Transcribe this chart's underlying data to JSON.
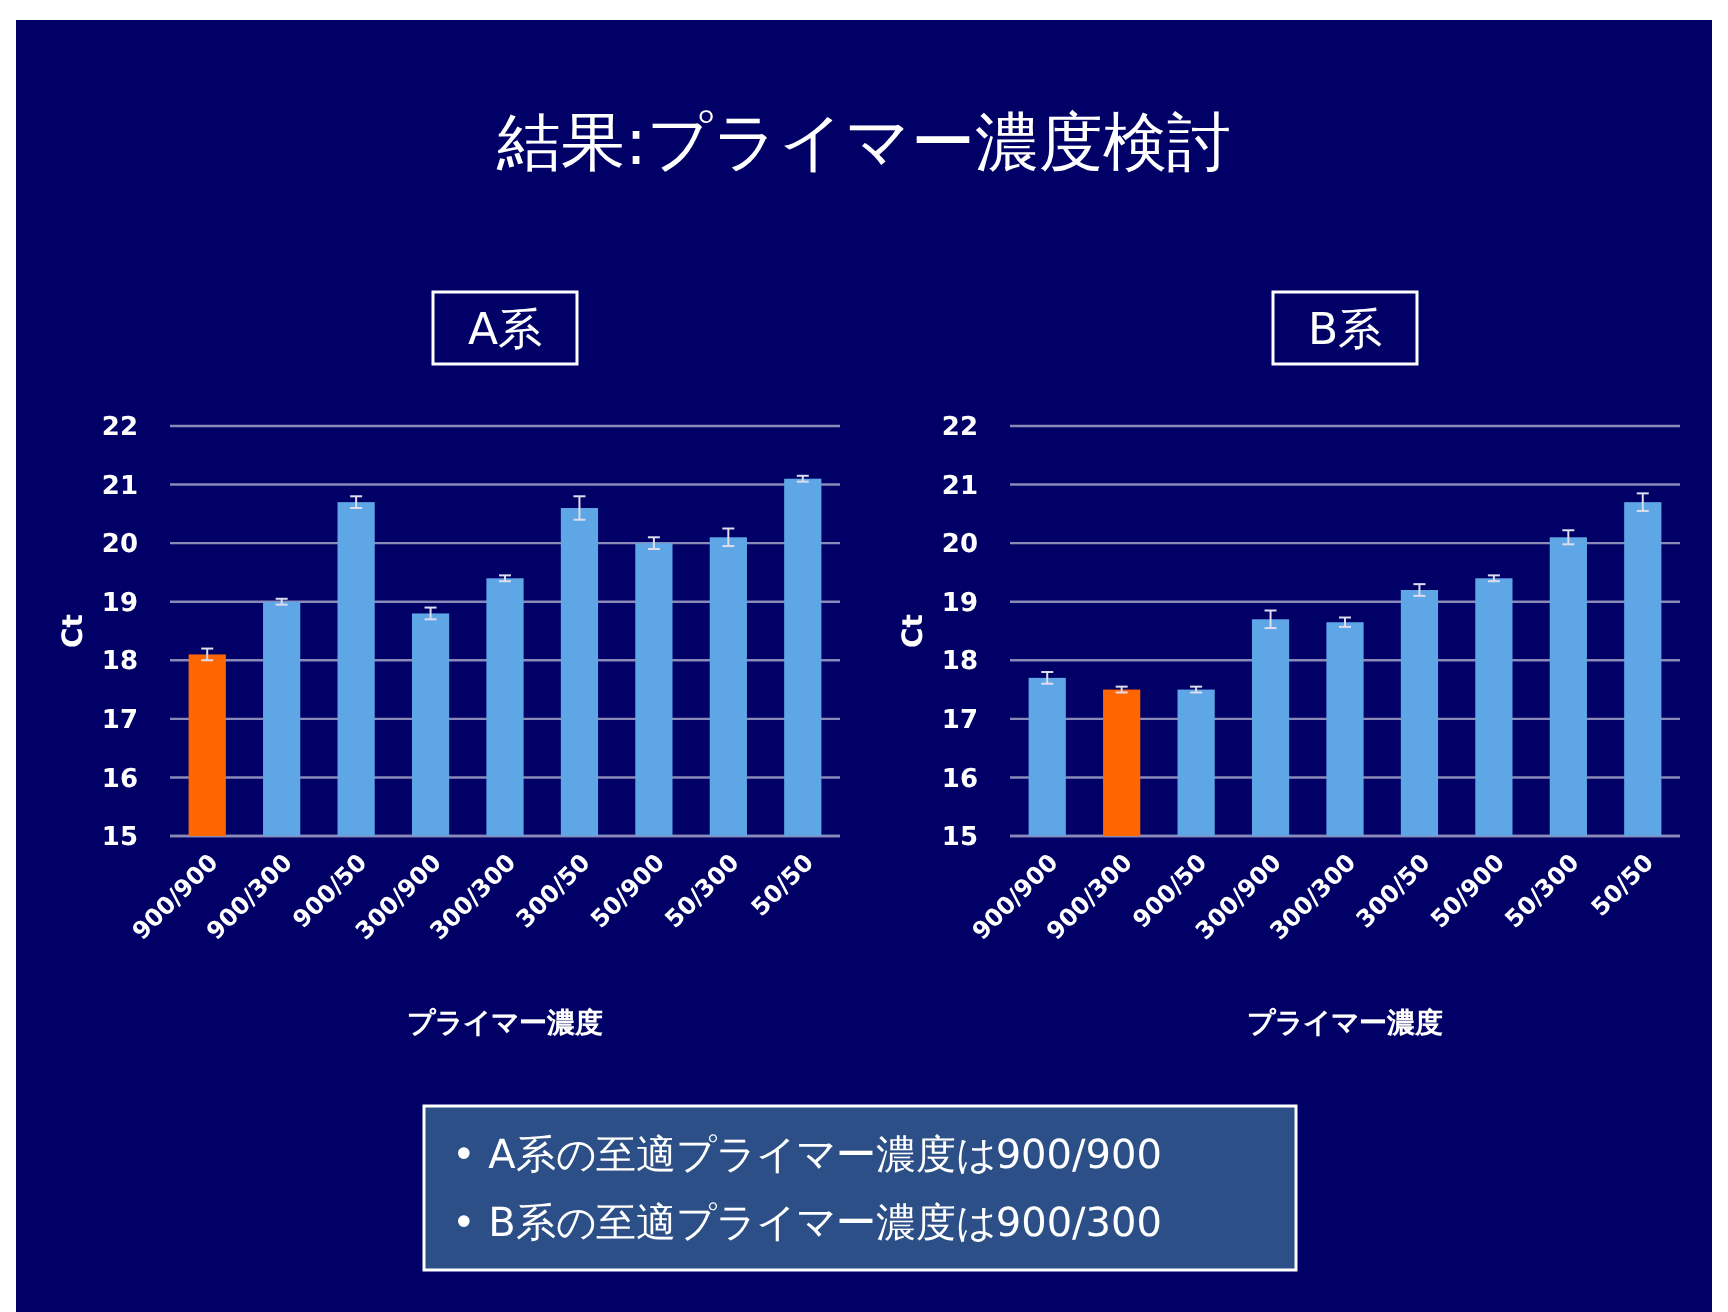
{
  "chart_data": [
    {
      "type": "other",
      "title": "結果:プライマー濃度検討"
    },
    {
      "type": "bar",
      "title": "A系",
      "xlabel": "プライマー濃度",
      "ylabel": "Ct",
      "categories": [
        "900/900",
        "900/300",
        "900/50",
        "300/900",
        "300/300",
        "300/50",
        "50/900",
        "50/300",
        "50/50"
      ],
      "values": [
        18.1,
        19.0,
        20.7,
        18.8,
        19.4,
        20.6,
        20.0,
        20.1,
        21.1
      ],
      "errors": [
        0.1,
        0.05,
        0.1,
        0.1,
        0.05,
        0.2,
        0.1,
        0.15,
        0.05
      ],
      "colors": [
        "#ff6600",
        "#5ea6e6",
        "#5ea6e6",
        "#5ea6e6",
        "#5ea6e6",
        "#5ea6e6",
        "#5ea6e6",
        "#5ea6e6",
        "#5ea6e6"
      ],
      "ylim": [
        15,
        22
      ],
      "yticks": [
        15,
        16,
        17,
        18,
        19,
        20,
        21,
        22
      ],
      "grid": "y"
    },
    {
      "type": "bar",
      "title": "B系",
      "xlabel": "プライマー濃度",
      "ylabel": "Ct",
      "categories": [
        "900/900",
        "900/300",
        "900/50",
        "300/900",
        "300/300",
        "300/50",
        "50/900",
        "50/300",
        "50/50"
      ],
      "values": [
        17.7,
        17.5,
        17.5,
        18.7,
        18.65,
        19.2,
        19.4,
        20.1,
        20.7
      ],
      "errors": [
        0.1,
        0.05,
        0.05,
        0.15,
        0.08,
        0.1,
        0.05,
        0.12,
        0.15
      ],
      "colors": [
        "#5ea6e6",
        "#ff6600",
        "#5ea6e6",
        "#5ea6e6",
        "#5ea6e6",
        "#5ea6e6",
        "#5ea6e6",
        "#5ea6e6",
        "#5ea6e6"
      ],
      "ylim": [
        15,
        22
      ],
      "yticks": [
        15,
        16,
        17,
        18,
        19,
        20,
        21,
        22
      ],
      "grid": "y"
    },
    {
      "type": "other",
      "annotations": [
        "•  A系の至適プライマー濃度は900/900",
        "•  B系の至適プライマー濃度は900/300"
      ]
    }
  ]
}
